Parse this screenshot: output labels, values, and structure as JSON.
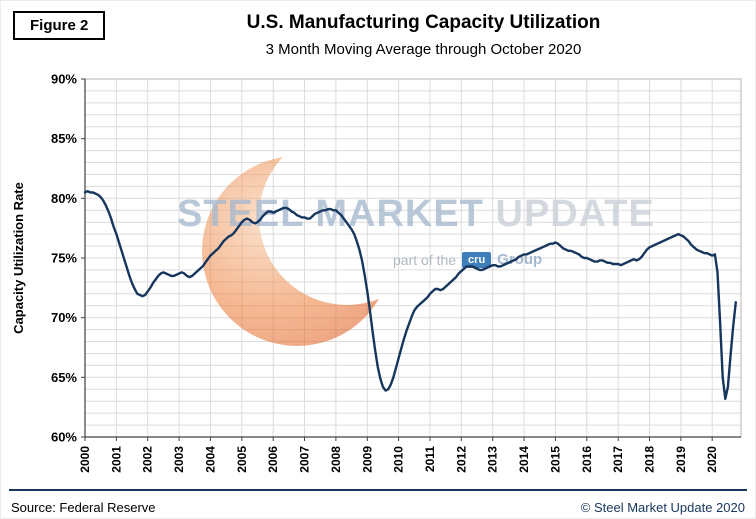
{
  "header": {
    "figure_label": "Figure 2"
  },
  "watermark": {
    "word1": "STEEL",
    "word2": "MARKET",
    "word3": "UPDATE",
    "tagline_prefix": "part of the",
    "tagline_logo": "cru",
    "tagline_suffix": "Group",
    "accent_color": "#E2571B",
    "text_color": "#A5B9CF",
    "update_color": "#C9CFD8",
    "cru_blue": "#2E74B5"
  },
  "footer": {
    "source": "Source: Federal Reserve",
    "copyright": "© Steel Market Update 2020"
  },
  "chart_data": {
    "type": "line",
    "title": "U.S. Manufacturing Capacity Utilization",
    "subtitle": "3 Month Moving Average through October 2020",
    "xlabel": "",
    "ylabel": "Capacity Utilization Rate",
    "ylim": [
      60,
      90
    ],
    "ytick_step": 5,
    "ytick_suffix": "%",
    "x_domain": [
      2000,
      2020.9167
    ],
    "x_tick_labels": [
      "2000",
      "2001",
      "2002",
      "2003",
      "2004",
      "2005",
      "2006",
      "2007",
      "2008",
      "2009",
      "2010",
      "2011",
      "2012",
      "2013",
      "2014",
      "2015",
      "2016",
      "2017",
      "2018",
      "2019",
      "2020"
    ],
    "grid": true,
    "legend_position": "none",
    "line_color": "#16365D",
    "series": [
      {
        "name": "U.S. Manufacturing Capacity Utilization (3-month moving average)",
        "start": "2000-01",
        "end": "2020-10",
        "frequency": "monthly",
        "values": [
          80.5,
          80.6,
          80.5,
          80.5,
          80.4,
          80.3,
          80.1,
          79.8,
          79.4,
          78.9,
          78.3,
          77.6,
          77.0,
          76.3,
          75.6,
          74.9,
          74.2,
          73.5,
          72.9,
          72.4,
          72.0,
          71.9,
          71.8,
          71.9,
          72.2,
          72.5,
          72.9,
          73.2,
          73.5,
          73.7,
          73.8,
          73.7,
          73.6,
          73.5,
          73.5,
          73.6,
          73.7,
          73.8,
          73.7,
          73.5,
          73.4,
          73.5,
          73.7,
          73.9,
          74.1,
          74.3,
          74.6,
          74.9,
          75.2,
          75.4,
          75.6,
          75.8,
          76.1,
          76.4,
          76.6,
          76.8,
          76.9,
          77.1,
          77.4,
          77.7,
          78.0,
          78.2,
          78.3,
          78.2,
          78.0,
          77.9,
          78.0,
          78.2,
          78.5,
          78.7,
          78.9,
          78.9,
          78.8,
          78.9,
          79.0,
          79.1,
          79.2,
          79.2,
          79.1,
          78.9,
          78.8,
          78.6,
          78.5,
          78.4,
          78.4,
          78.3,
          78.3,
          78.5,
          78.7,
          78.8,
          78.9,
          79.0,
          79.0,
          79.1,
          79.1,
          79.0,
          79.0,
          78.8,
          78.6,
          78.3,
          78.0,
          77.7,
          77.4,
          77.0,
          76.4,
          75.7,
          74.8,
          73.6,
          72.2,
          70.6,
          68.9,
          67.3,
          65.9,
          64.9,
          64.2,
          63.9,
          64.0,
          64.4,
          65.0,
          65.8,
          66.6,
          67.4,
          68.2,
          68.9,
          69.5,
          70.1,
          70.6,
          70.9,
          71.1,
          71.3,
          71.5,
          71.7,
          72.0,
          72.2,
          72.4,
          72.4,
          72.3,
          72.4,
          72.6,
          72.8,
          73.0,
          73.2,
          73.4,
          73.7,
          73.9,
          74.1,
          74.3,
          74.3,
          74.3,
          74.2,
          74.1,
          74.0,
          74.0,
          74.1,
          74.2,
          74.3,
          74.4,
          74.4,
          74.3,
          74.3,
          74.4,
          74.5,
          74.6,
          74.7,
          74.8,
          74.9,
          75.1,
          75.2,
          75.3,
          75.3,
          75.4,
          75.5,
          75.6,
          75.7,
          75.8,
          75.9,
          76.0,
          76.1,
          76.2,
          76.2,
          76.3,
          76.2,
          76.0,
          75.8,
          75.7,
          75.6,
          75.6,
          75.5,
          75.4,
          75.3,
          75.1,
          75.0,
          75.0,
          74.9,
          74.8,
          74.7,
          74.7,
          74.8,
          74.8,
          74.7,
          74.6,
          74.6,
          74.5,
          74.5,
          74.5,
          74.4,
          74.5,
          74.6,
          74.7,
          74.8,
          74.9,
          74.8,
          74.9,
          75.1,
          75.4,
          75.7,
          75.9,
          76.0,
          76.1,
          76.2,
          76.3,
          76.4,
          76.5,
          76.6,
          76.7,
          76.8,
          76.9,
          77.0,
          76.9,
          76.8,
          76.6,
          76.4,
          76.1,
          75.9,
          75.7,
          75.6,
          75.5,
          75.4,
          75.4,
          75.3,
          75.2,
          75.3,
          73.8,
          69.6,
          65.0,
          63.2,
          64.2,
          66.8,
          69.3,
          71.3
        ]
      }
    ]
  }
}
